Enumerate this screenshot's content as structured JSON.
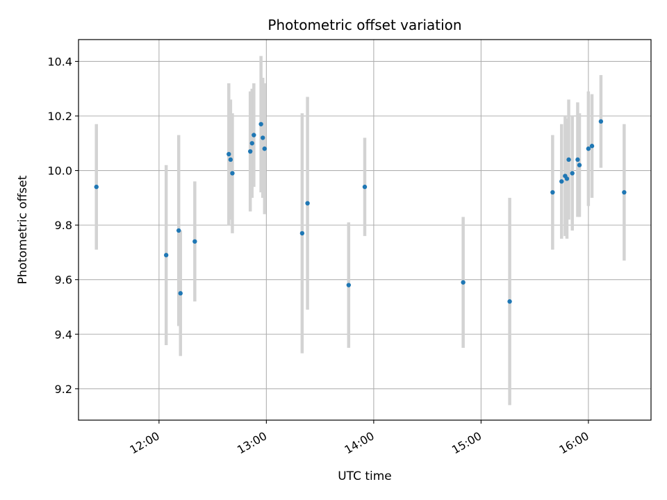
{
  "chart_data": {
    "type": "scatter",
    "title": "Photometric offset variation",
    "xlabel": "UTC time",
    "ylabel": "Photometric offset",
    "xlim": [
      "11:15",
      "16:35"
    ],
    "ylim": [
      9.085,
      10.48
    ],
    "grid": true,
    "x_ticks": [
      "12:00",
      "13:00",
      "14:00",
      "15:00",
      "16:00"
    ],
    "y_ticks": [
      "9.2",
      "9.4",
      "9.6",
      "9.8",
      "10.0",
      "10.2",
      "10.4"
    ],
    "colors": {
      "point": "#1f77b4",
      "errorbar": "#d3d3d3",
      "grid": "#b0b0b0"
    },
    "points": [
      {
        "x": "11:25",
        "y": 9.94,
        "err": 0.23
      },
      {
        "x": "12:04",
        "y": 9.69,
        "err": 0.33
      },
      {
        "x": "12:11",
        "y": 9.78,
        "err": 0.35
      },
      {
        "x": "12:12",
        "y": 9.55,
        "err": 0.23
      },
      {
        "x": "12:20",
        "y": 9.74,
        "err": 0.22
      },
      {
        "x": "12:39",
        "y": 10.06,
        "err": 0.26
      },
      {
        "x": "12:40",
        "y": 10.04,
        "err": 0.22
      },
      {
        "x": "12:41",
        "y": 9.99,
        "err": 0.22
      },
      {
        "x": "12:51",
        "y": 10.07,
        "err": 0.22
      },
      {
        "x": "12:52",
        "y": 10.1,
        "err": 0.2
      },
      {
        "x": "12:53",
        "y": 10.13,
        "err": 0.19
      },
      {
        "x": "12:57",
        "y": 10.17,
        "err": 0.25
      },
      {
        "x": "12:58",
        "y": 10.12,
        "err": 0.22
      },
      {
        "x": "12:59",
        "y": 10.08,
        "err": 0.24
      },
      {
        "x": "13:20",
        "y": 9.77,
        "err": 0.44
      },
      {
        "x": "13:23",
        "y": 9.88,
        "err": 0.39
      },
      {
        "x": "13:46",
        "y": 9.58,
        "err": 0.23
      },
      {
        "x": "13:55",
        "y": 9.94,
        "err": 0.18
      },
      {
        "x": "14:50",
        "y": 9.59,
        "err": 0.24
      },
      {
        "x": "15:16",
        "y": 9.52,
        "err": 0.38
      },
      {
        "x": "15:40",
        "y": 9.92,
        "err": 0.21
      },
      {
        "x": "15:45",
        "y": 9.96,
        "err": 0.21
      },
      {
        "x": "15:47",
        "y": 9.98,
        "err": 0.22
      },
      {
        "x": "15:48",
        "y": 9.97,
        "err": 0.22
      },
      {
        "x": "15:49",
        "y": 10.04,
        "err": 0.22
      },
      {
        "x": "15:51",
        "y": 9.99,
        "err": 0.21
      },
      {
        "x": "15:54",
        "y": 10.04,
        "err": 0.21
      },
      {
        "x": "15:55",
        "y": 10.02,
        "err": 0.19
      },
      {
        "x": "16:00",
        "y": 10.08,
        "err": 0.21
      },
      {
        "x": "16:02",
        "y": 10.09,
        "err": 0.19
      },
      {
        "x": "16:07",
        "y": 10.18,
        "err": 0.17
      },
      {
        "x": "16:20",
        "y": 9.92,
        "err": 0.25
      }
    ]
  }
}
